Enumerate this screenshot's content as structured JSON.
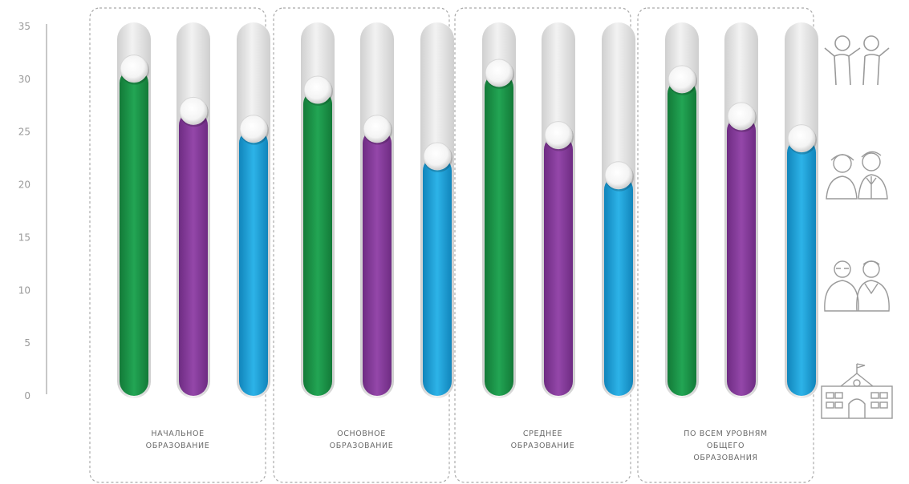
{
  "chart_data": {
    "type": "bar",
    "ylim": [
      0,
      35
    ],
    "yticks": [
      "0",
      "5",
      "10",
      "15",
      "20",
      "25",
      "30",
      "35"
    ],
    "groups": [
      {
        "label": [
          "НАЧАЛЬНОЕ",
          "ОБРАЗОВАНИЕ"
        ],
        "values": [
          31,
          27,
          25.3
        ]
      },
      {
        "label": [
          "ОСНОВНОЕ",
          "ОБРАЗОВАНИЕ"
        ],
        "values": [
          29,
          25.3,
          22.7
        ]
      },
      {
        "label": [
          "СРЕДНЕЕ",
          "ОБРАЗОВАНИЕ"
        ],
        "values": [
          30.6,
          24.7,
          20.9
        ]
      },
      {
        "label": [
          "ПО ВСЕМ УРОВНЯМ",
          "ОБЩЕГО",
          "ОБРАЗОВАНИЯ"
        ],
        "values": [
          30,
          26.5,
          24.4
        ]
      }
    ],
    "series_colors": [
      "#1a9a4a",
      "#8a3d9e",
      "#1aa3dc"
    ],
    "track_color": "#e2e2e2",
    "grid": false
  },
  "icons": [
    {
      "name": "children-icon"
    },
    {
      "name": "teens-icon"
    },
    {
      "name": "students-icon"
    },
    {
      "name": "school-building-icon"
    }
  ]
}
